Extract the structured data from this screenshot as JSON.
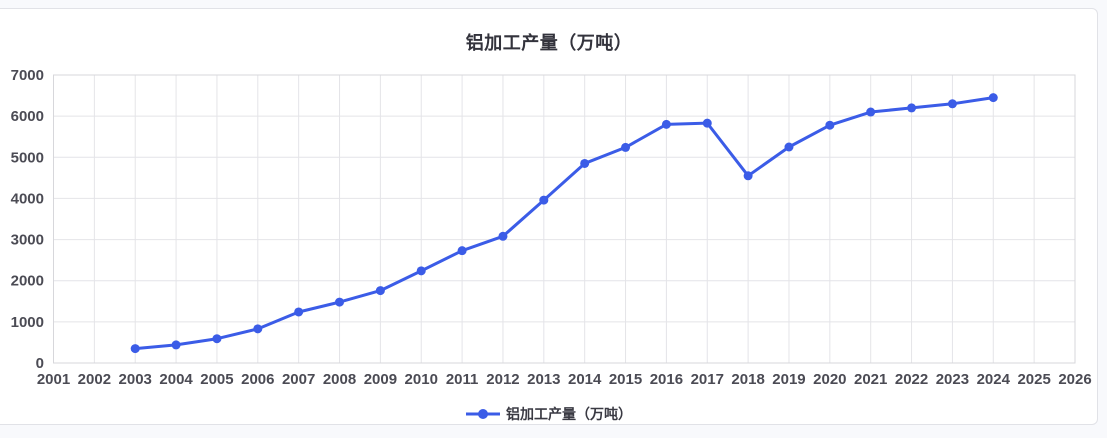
{
  "page": {
    "background_color": "#f8f9fc"
  },
  "card": {
    "background_color": "#ffffff",
    "border_color": "#e1e2e7"
  },
  "chart_data": {
    "type": "line",
    "title": "铝加工产量（万吨）",
    "x_axis": {
      "tick_labels": [
        "2001",
        "2002",
        "2003",
        "2004",
        "2005",
        "2006",
        "2007",
        "2008",
        "2009",
        "2010",
        "2011",
        "2012",
        "2013",
        "2014",
        "2015",
        "2016",
        "2017",
        "2018",
        "2019",
        "2020",
        "2021",
        "2022",
        "2023",
        "2024",
        "2025",
        "2026"
      ]
    },
    "y_axis": {
      "min": 0,
      "max": 7000,
      "step": 1000,
      "tick_labels": [
        "0",
        "1000",
        "2000",
        "3000",
        "4000",
        "5000",
        "6000",
        "7000"
      ]
    },
    "grid": "on",
    "legend": {
      "position": "bottom",
      "items": [
        {
          "label": "铝加工产量（万吨）",
          "color": "#3B5CE7",
          "marker": "line-circle"
        }
      ]
    },
    "series": [
      {
        "name": "铝加工产量（万吨）",
        "color": "#3B5CE7",
        "x": [
          "2003",
          "2004",
          "2005",
          "2006",
          "2007",
          "2008",
          "2009",
          "2010",
          "2011",
          "2012",
          "2013",
          "2014",
          "2015",
          "2016",
          "2017",
          "2018",
          "2019",
          "2020",
          "2021",
          "2022",
          "2023",
          "2024"
        ],
        "values": [
          350,
          440,
          590,
          830,
          1240,
          1480,
          1760,
          2240,
          2730,
          3080,
          3960,
          4850,
          5240,
          5800,
          5830,
          4550,
          5250,
          5780,
          6100,
          6200,
          6300,
          6450
        ]
      }
    ],
    "colors": {
      "grid_line": "#e4e4e8",
      "plot_border": "#d7d7db",
      "tick_label": "#4b4b54",
      "title": "#33333c"
    }
  }
}
